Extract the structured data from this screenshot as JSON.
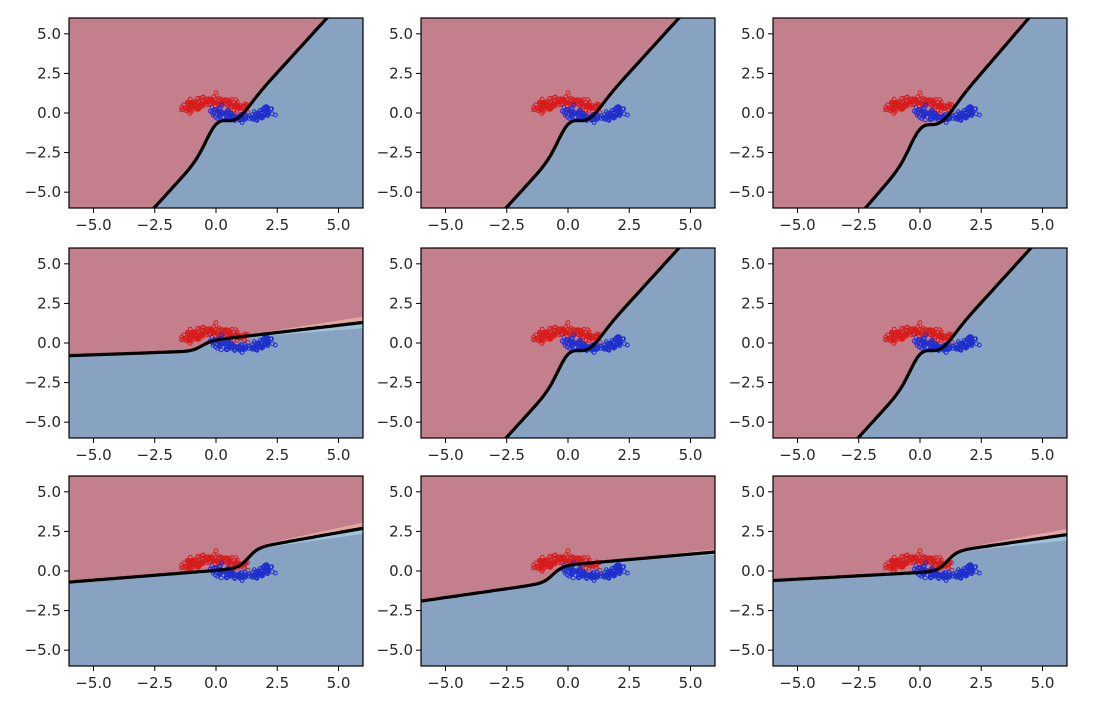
{
  "figure": {
    "colors": {
      "class_a_region": "#c47f8c",
      "class_b_region": "#88a3c1",
      "class_a_points": "#d81c1c",
      "class_b_points": "#1f2fd0",
      "boundary": "#000000",
      "uncertainty_warm": "#efb4a6",
      "uncertainty_cool": "#a9cde0"
    }
  },
  "chart_data": [
    {
      "type": "scatter",
      "title": "",
      "xlabel": "",
      "ylabel": "",
      "xlim": [
        -6,
        6
      ],
      "ylim": [
        -6,
        6
      ],
      "grid": false,
      "xticks": [
        "−5.0",
        "−2.5",
        "0.0",
        "2.5",
        "5.0"
      ],
      "yticks": [
        "5.0",
        "2.5",
        "0.0",
        "−2.5",
        "−5.0"
      ],
      "series": [
        {
          "values": "two interleaving half-moons"
        }
      ],
      "boundary": {
        "kind": "steep",
        "slope": 1.7,
        "intercept": -1.8,
        "wiggle": 1.0,
        "uncertainty": 0
      }
    },
    {
      "type": "scatter",
      "title": "",
      "xlabel": "",
      "ylabel": "",
      "xlim": [
        -6,
        6
      ],
      "ylim": [
        -6,
        6
      ],
      "grid": false,
      "xticks": [
        "−5.0",
        "−2.5",
        "0.0",
        "2.5",
        "5.0"
      ],
      "yticks": [
        "5.0",
        "2.5",
        "0.0",
        "−2.5",
        "−5.0"
      ],
      "series": [
        {
          "values": "two interleaving half-moons"
        }
      ],
      "boundary": {
        "kind": "steep",
        "slope": 1.7,
        "intercept": -1.8,
        "wiggle": 1.0,
        "uncertainty": 0
      }
    },
    {
      "type": "scatter",
      "title": "",
      "xlabel": "",
      "ylabel": "",
      "xlim": [
        -6,
        6
      ],
      "ylim": [
        -6,
        6
      ],
      "grid": false,
      "xticks": [
        "−5.0",
        "−2.5",
        "0.0",
        "2.5",
        "5.0"
      ],
      "yticks": [
        "5.0",
        "2.5",
        "0.0",
        "−2.5",
        "−5.0"
      ],
      "series": [
        {
          "values": "two interleaving half-moons"
        }
      ],
      "boundary": {
        "kind": "steep",
        "slope": 1.8,
        "intercept": -2.0,
        "wiggle": 1.0,
        "uncertainty": 0
      }
    },
    {
      "type": "scatter",
      "title": "",
      "xlabel": "",
      "ylabel": "",
      "xlim": [
        -6,
        6
      ],
      "ylim": [
        -6,
        6
      ],
      "grid": false,
      "xticks": [
        "−5.0",
        "−2.5",
        "0.0",
        "2.5",
        "5.0"
      ],
      "yticks": [
        "5.0",
        "2.5",
        "0.0",
        "−2.5",
        "−5.0"
      ],
      "series": [
        {
          "values": "two interleaving half-moons"
        }
      ],
      "boundary": {
        "kind": "flat",
        "left": [
          -6,
          -0.8
        ],
        "kink_x": -0.6,
        "kink_y": -0.5,
        "right_start_y": 0.1,
        "right": [
          6,
          1.3
        ],
        "uncertainty": 1
      }
    },
    {
      "type": "scatter",
      "title": "",
      "xlabel": "",
      "ylabel": "",
      "xlim": [
        -6,
        6
      ],
      "ylim": [
        -6,
        6
      ],
      "grid": false,
      "xticks": [
        "−5.0",
        "−2.5",
        "0.0",
        "2.5",
        "5.0"
      ],
      "yticks": [
        "5.0",
        "2.5",
        "0.0",
        "−2.5",
        "−5.0"
      ],
      "series": [
        {
          "values": "two interleaving half-moons"
        }
      ],
      "boundary": {
        "kind": "steep",
        "slope": 1.7,
        "intercept": -1.8,
        "wiggle": 1.0,
        "uncertainty": 0
      }
    },
    {
      "type": "scatter",
      "title": "",
      "xlabel": "",
      "ylabel": "",
      "xlim": [
        -6,
        6
      ],
      "ylim": [
        -6,
        6
      ],
      "grid": false,
      "xticks": [
        "−5.0",
        "−2.5",
        "0.0",
        "2.5",
        "5.0"
      ],
      "yticks": [
        "5.0",
        "2.5",
        "0.0",
        "−2.5",
        "−5.0"
      ],
      "series": [
        {
          "values": "two interleaving half-moons"
        }
      ],
      "boundary": {
        "kind": "steep",
        "slope": 1.7,
        "intercept": -1.8,
        "wiggle": 1.0,
        "uncertainty": 0
      }
    },
    {
      "type": "scatter",
      "title": "",
      "xlabel": "",
      "ylabel": "",
      "xlim": [
        -6,
        6
      ],
      "ylim": [
        -6,
        6
      ],
      "grid": false,
      "xticks": [
        "−5.0",
        "−2.5",
        "0.0",
        "2.5",
        "5.0"
      ],
      "yticks": [
        "5.0",
        "2.5",
        "0.0",
        "−2.5",
        "−5.0"
      ],
      "series": [
        {
          "values": "two interleaving half-moons"
        }
      ],
      "boundary": {
        "kind": "flat",
        "left": [
          -6,
          -0.7
        ],
        "kink_x": 1.3,
        "kink_y": 0.2,
        "right_start_y": 1.4,
        "right": [
          6,
          2.7
        ],
        "uncertainty": 1
      }
    },
    {
      "type": "scatter",
      "title": "",
      "xlabel": "",
      "ylabel": "",
      "xlim": [
        -6,
        6
      ],
      "ylim": [
        -6,
        6
      ],
      "grid": false,
      "xticks": [
        "−5.0",
        "−2.5",
        "0.0",
        "2.5",
        "5.0"
      ],
      "yticks": [
        "5.0",
        "2.5",
        "0.0",
        "−2.5",
        "−5.0"
      ],
      "series": [
        {
          "values": "two interleaving half-moons"
        }
      ],
      "boundary": {
        "kind": "flat",
        "left": [
          -6,
          -1.9
        ],
        "kink_x": -0.6,
        "kink_y": -0.7,
        "right_start_y": 0.3,
        "right": [
          6,
          1.2
        ],
        "uncertainty": 0.5
      }
    },
    {
      "type": "scatter",
      "title": "",
      "xlabel": "",
      "ylabel": "",
      "xlim": [
        -6,
        6
      ],
      "ylim": [
        -6,
        6
      ],
      "grid": false,
      "xticks": [
        "−5.0",
        "−2.5",
        "0.0",
        "2.5",
        "5.0"
      ],
      "yticks": [
        "5.0",
        "2.5",
        "0.0",
        "−2.5",
        "−5.0"
      ],
      "series": [
        {
          "values": "two interleaving half-moons"
        }
      ],
      "boundary": {
        "kind": "flat",
        "left": [
          -6,
          -0.6
        ],
        "kink_x": 1.1,
        "kink_y": 0.0,
        "right_start_y": 1.2,
        "right": [
          6,
          2.3
        ],
        "uncertainty": 1
      }
    }
  ]
}
